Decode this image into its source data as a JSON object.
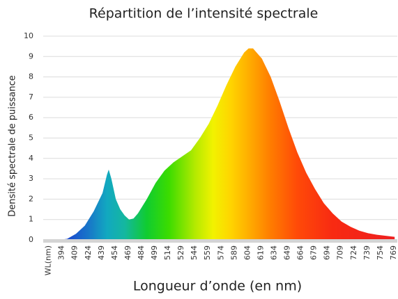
{
  "chart_data": {
    "type": "area",
    "title": "Répartition de l’intensité spectrale",
    "x_label": "Longueur d’onde (en nm)",
    "y_label": "Densité spectrale de puissance",
    "x": [
      380,
      390,
      400,
      410,
      420,
      430,
      440,
      445,
      447,
      450,
      455,
      460,
      465,
      470,
      475,
      480,
      490,
      500,
      510,
      520,
      530,
      540,
      550,
      560,
      570,
      580,
      590,
      600,
      605,
      610,
      620,
      630,
      640,
      650,
      660,
      670,
      680,
      690,
      700,
      710,
      720,
      730,
      740,
      750,
      760,
      770
    ],
    "values": [
      0,
      0,
      0.05,
      0.3,
      0.7,
      1.4,
      2.3,
      3.2,
      3.45,
      3.0,
      2.0,
      1.5,
      1.2,
      1.0,
      1.05,
      1.3,
      2.0,
      2.8,
      3.4,
      3.8,
      4.1,
      4.4,
      5.0,
      5.7,
      6.6,
      7.6,
      8.5,
      9.2,
      9.4,
      9.4,
      8.9,
      8.0,
      6.8,
      5.5,
      4.3,
      3.3,
      2.5,
      1.8,
      1.3,
      0.9,
      0.65,
      0.45,
      0.33,
      0.25,
      0.2,
      0.15
    ],
    "xlim": [
      373,
      773
    ],
    "xticks": [
      {
        "value": 379,
        "label": "WL(nm)"
      },
      394,
      409,
      424,
      439,
      454,
      469,
      484,
      499,
      514,
      529,
      544,
      559,
      574,
      589,
      604,
      619,
      634,
      649,
      664,
      679,
      694,
      709,
      724,
      739,
      754,
      769
    ],
    "ylim": [
      0,
      10
    ],
    "yticks": [
      0,
      1,
      2,
      3,
      4,
      5,
      6,
      7,
      8,
      9,
      10
    ],
    "grid": true
  }
}
